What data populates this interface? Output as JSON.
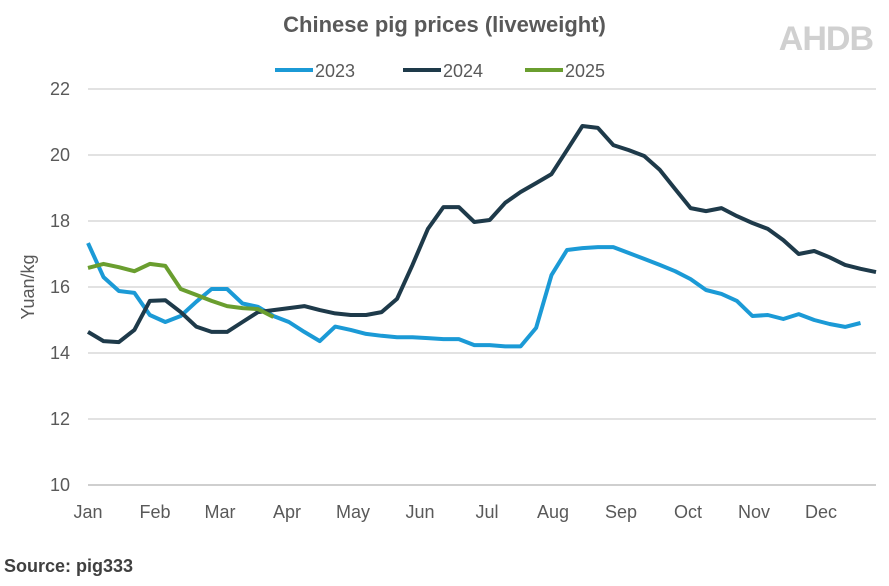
{
  "branding": {
    "logo": "AHDB"
  },
  "source": "Source: pig333",
  "chart_data": {
    "type": "line",
    "title": "Chinese pig prices (liveweight)",
    "ylabel": "Yuan/kg",
    "xlabel": "",
    "ylim": [
      10,
      22
    ],
    "yticks": [
      10,
      12,
      14,
      16,
      18,
      20,
      22
    ],
    "xtick_labels": [
      "Jan",
      "Feb",
      "Mar",
      "Apr",
      "May",
      "Jun",
      "Jul",
      "Aug",
      "Sep",
      "Oct",
      "Nov",
      "Dec"
    ],
    "x_unit": "week of year",
    "grid": "horizontal",
    "legend": "top",
    "series": [
      {
        "name": "2023",
        "color": "#1b9ad6",
        "values": [
          17.33,
          16.3,
          15.88,
          15.82,
          15.15,
          14.94,
          15.12,
          15.55,
          15.94,
          15.94,
          15.5,
          15.4,
          15.12,
          14.94,
          14.64,
          14.36,
          14.8,
          14.7,
          14.58,
          14.52,
          14.48,
          14.48,
          14.45,
          14.42,
          14.42,
          14.24,
          14.24,
          14.2,
          14.2,
          14.76,
          16.36,
          17.12,
          17.18,
          17.21,
          17.21,
          17.03,
          16.85,
          16.67,
          16.48,
          16.24,
          15.91,
          15.79,
          15.58,
          15.12,
          15.15,
          15.03,
          15.18,
          15.0,
          14.88,
          14.79,
          14.91
        ]
      },
      {
        "name": "2024",
        "color": "#1e3a4a",
        "values": [
          14.64,
          14.36,
          14.33,
          14.7,
          15.58,
          15.6,
          15.24,
          14.8,
          14.64,
          14.64,
          14.94,
          15.24,
          15.3,
          15.36,
          15.42,
          15.3,
          15.2,
          15.15,
          15.15,
          15.24,
          15.64,
          16.67,
          17.76,
          18.42,
          18.42,
          17.97,
          18.03,
          18.55,
          18.88,
          19.15,
          19.42,
          20.15,
          20.88,
          20.82,
          20.3,
          20.15,
          19.97,
          19.55,
          18.97,
          18.39,
          18.3,
          18.39,
          18.15,
          17.94,
          17.76,
          17.42,
          17.0,
          17.09,
          16.9,
          16.67,
          16.55,
          16.45
        ]
      },
      {
        "name": "2025",
        "color": "#6a9e2f",
        "values": [
          16.58,
          16.7,
          16.6,
          16.48,
          16.7,
          16.64,
          15.94,
          15.76,
          15.58,
          15.42,
          15.36,
          15.33,
          15.09
        ]
      }
    ]
  }
}
